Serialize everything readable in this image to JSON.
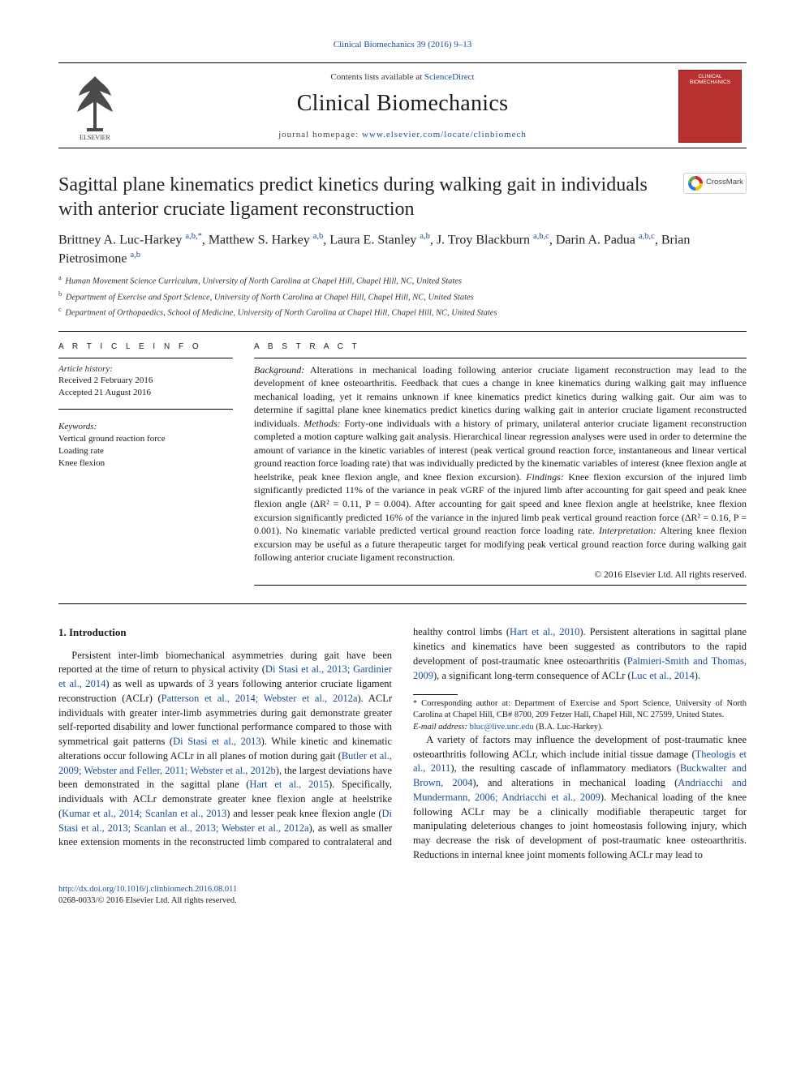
{
  "top_link": {
    "text": "Clinical Biomechanics 39 (2016) 9–13",
    "href": "#"
  },
  "masthead": {
    "contents_prefix": "Contents lists available at ",
    "contents_link": "ScienceDirect",
    "journal": "Clinical Biomechanics",
    "homepage_prefix": "journal homepage: ",
    "homepage_link": "www.elsevier.com/locate/clinbiomech",
    "cover_label_1": "CLINICAL",
    "cover_label_2": "BIOMECHANICS"
  },
  "crossmark_label": "CrossMark",
  "title": "Sagittal plane kinematics predict kinetics during walking gait in individuals with anterior cruciate ligament reconstruction",
  "authors_html": "Brittney A. Luc-Harkey <sup>a,b,*</sup>, Matthew S. Harkey <sup>a,b</sup>, Laura E. Stanley <sup>a,b</sup>, J. Troy Blackburn <sup>a,b,c</sup>, Darin A. Padua <sup>a,b,c</sup>, Brian Pietrosimone <sup>a,b</sup>",
  "authors": [
    {
      "name": "Brittney A. Luc-Harkey",
      "aff": "a,b,*"
    },
    {
      "name": "Matthew S. Harkey",
      "aff": "a,b"
    },
    {
      "name": "Laura E. Stanley",
      "aff": "a,b"
    },
    {
      "name": "J. Troy Blackburn",
      "aff": "a,b,c"
    },
    {
      "name": "Darin A. Padua",
      "aff": "a,b,c"
    },
    {
      "name": "Brian Pietrosimone",
      "aff": "a,b"
    }
  ],
  "affiliations": [
    {
      "idx": "a",
      "text": "Human Movement Science Curriculum, University of North Carolina at Chapel Hill, Chapel Hill, NC, United States"
    },
    {
      "idx": "b",
      "text": "Department of Exercise and Sport Science, University of North Carolina at Chapel Hill, Chapel Hill, NC, United States"
    },
    {
      "idx": "c",
      "text": "Department of Orthopaedics, School of Medicine, University of North Carolina at Chapel Hill, Chapel Hill, NC, United States"
    }
  ],
  "info": {
    "article_info_label": "A R T I C L E   I N F O",
    "history_head": "Article history:",
    "received": "Received 2 February 2016",
    "accepted": "Accepted 21 August 2016",
    "keywords_head": "Keywords:",
    "keywords": [
      "Vertical ground reaction force",
      "Loading rate",
      "Knee flexion"
    ]
  },
  "abstract": {
    "label": "A B S T R A C T",
    "sections": [
      {
        "head": "Background:",
        "text": "Alterations in mechanical loading following anterior cruciate ligament reconstruction may lead to the development of knee osteoarthritis. Feedback that cues a change in knee kinematics during walking gait may influence mechanical loading, yet it remains unknown if knee kinematics predict kinetics during walking gait. Our aim was to determine if sagittal plane knee kinematics predict kinetics during walking gait in anterior cruciate ligament reconstructed individuals."
      },
      {
        "head": "Methods:",
        "text": "Forty-one individuals with a history of primary, unilateral anterior cruciate ligament reconstruction completed a motion capture walking gait analysis. Hierarchical linear regression analyses were used in order to determine the amount of variance in the kinetic variables of interest (peak vertical ground reaction force, instantaneous and linear vertical ground reaction force loading rate) that was individually predicted by the kinematic variables of interest (knee flexion angle at heelstrike, peak knee flexion angle, and knee flexion excursion)."
      },
      {
        "head": "Findings:",
        "text": "Knee flexion excursion of the injured limb significantly predicted 11% of the variance in peak vGRF of the injured limb after accounting for gait speed and peak knee flexion angle (ΔR² = 0.11, P = 0.004). After accounting for gait speed and knee flexion angle at heelstrike, knee flexion excursion significantly predicted 16% of the variance in the injured limb peak vertical ground reaction force (ΔR² = 0.16, P = 0.001). No kinematic variable predicted vertical ground reaction force loading rate."
      },
      {
        "head": "Interpretation:",
        "text": "Altering knee flexion excursion may be useful as a future therapeutic target for modifying peak vertical ground reaction force during walking gait following anterior cruciate ligament reconstruction."
      }
    ],
    "copyright": "© 2016 Elsevier Ltd. All rights reserved."
  },
  "body": {
    "h_intro": "1. Introduction",
    "p1_a": "Persistent inter-limb biomechanical asymmetries during gait have been reported at the time of return to physical activity (",
    "p1_l1": "Di Stasi et al., 2013; Gardinier et al., 2014",
    "p1_b": ") as well as upwards of 3 years following anterior cruciate ligament reconstruction (ACLr) (",
    "p1_l2": "Patterson et al., 2014; Webster et al., 2012a",
    "p1_c": "). ACLr individuals with greater inter-limb asymmetries during gait demonstrate greater self-reported disability and lower functional performance compared to those with symmetrical gait patterns (",
    "p1_l3": "Di Stasi et al., 2013",
    "p1_d": "). While kinetic and kinematic alterations occur following ACLr in all planes of motion during gait (",
    "p1_l4": "Butler et al., 2009; Webster and Feller, 2011; Webster et al., 2012b",
    "p1_e": "), the largest deviations have been demonstrated in the sagittal plane (",
    "p1_l5": "Hart et al., 2015",
    "p1_f": "). Specifically, individuals with ACLr demonstrate greater knee flexion angle at heelstrike (",
    "p1_l6": "Kumar et al., 2014; Scanlan et al., 2013",
    "p1_g": ") and lesser peak knee flexion angle (",
    "p1_l7": "Di Stasi et al., 2013; Scanlan et al., 2013; Webster et al., 2012a",
    "p1_h": "), as well as smaller knee extension moments in the reconstructed limb compared to contralateral and healthy control limbs (",
    "p1_l8": "Hart et al., 2010",
    "p1_i": "). Persistent alterations in sagittal plane kinetics and kinematics have been suggested as contributors to the rapid development of post-traumatic knee osteoarthritis (",
    "p1_l9": "Palmieri-Smith and Thomas, 2009",
    "p1_j": "), a significant long-term consequence of ACLr (",
    "p1_l10": "Luc et al., 2014",
    "p1_k": ").",
    "p2_a": "A variety of factors may influence the development of post-traumatic knee osteoarthritis following ACLr, which include initial tissue damage (",
    "p2_l1": "Theologis et al., 2011",
    "p2_b": "), the resulting cascade of inflammatory mediators (",
    "p2_l2": "Buckwalter and Brown, 2004",
    "p2_c": "), and alterations in mechanical loading (",
    "p2_l3": "Andriacchi and Mundermann, 2006; Andriacchi et al., 2009",
    "p2_d": "). Mechanical loading of the knee following ACLr may be a clinically modifiable therapeutic target for manipulating deleterious changes to joint homeostasis following injury, which may decrease the risk of development of post-traumatic knee osteoarthritis. Reductions in internal knee joint moments following ACLr may lead to"
  },
  "footnotes": {
    "corr": "Corresponding author at: Department of Exercise and Sport Science, University of North Carolina at Chapel Hill, CB# 8700, 209 Fetzer Hall, Chapel Hill, NC 27599, United States.",
    "email_label": "E-mail address: ",
    "email": "bluc@live.unc.edu",
    "email_suffix": " (B.A. Luc-Harkey)."
  },
  "footer": {
    "doi": "http://dx.doi.org/10.1016/j.clinbiomech.2016.08.011",
    "issn_line": "0268-0033/© 2016 Elsevier Ltd. All rights reserved."
  },
  "colors": {
    "link": "#1a4b9b",
    "text": "#1a1a1a",
    "cover": "#b73131",
    "elsevier_orange": "#e77b2a"
  }
}
